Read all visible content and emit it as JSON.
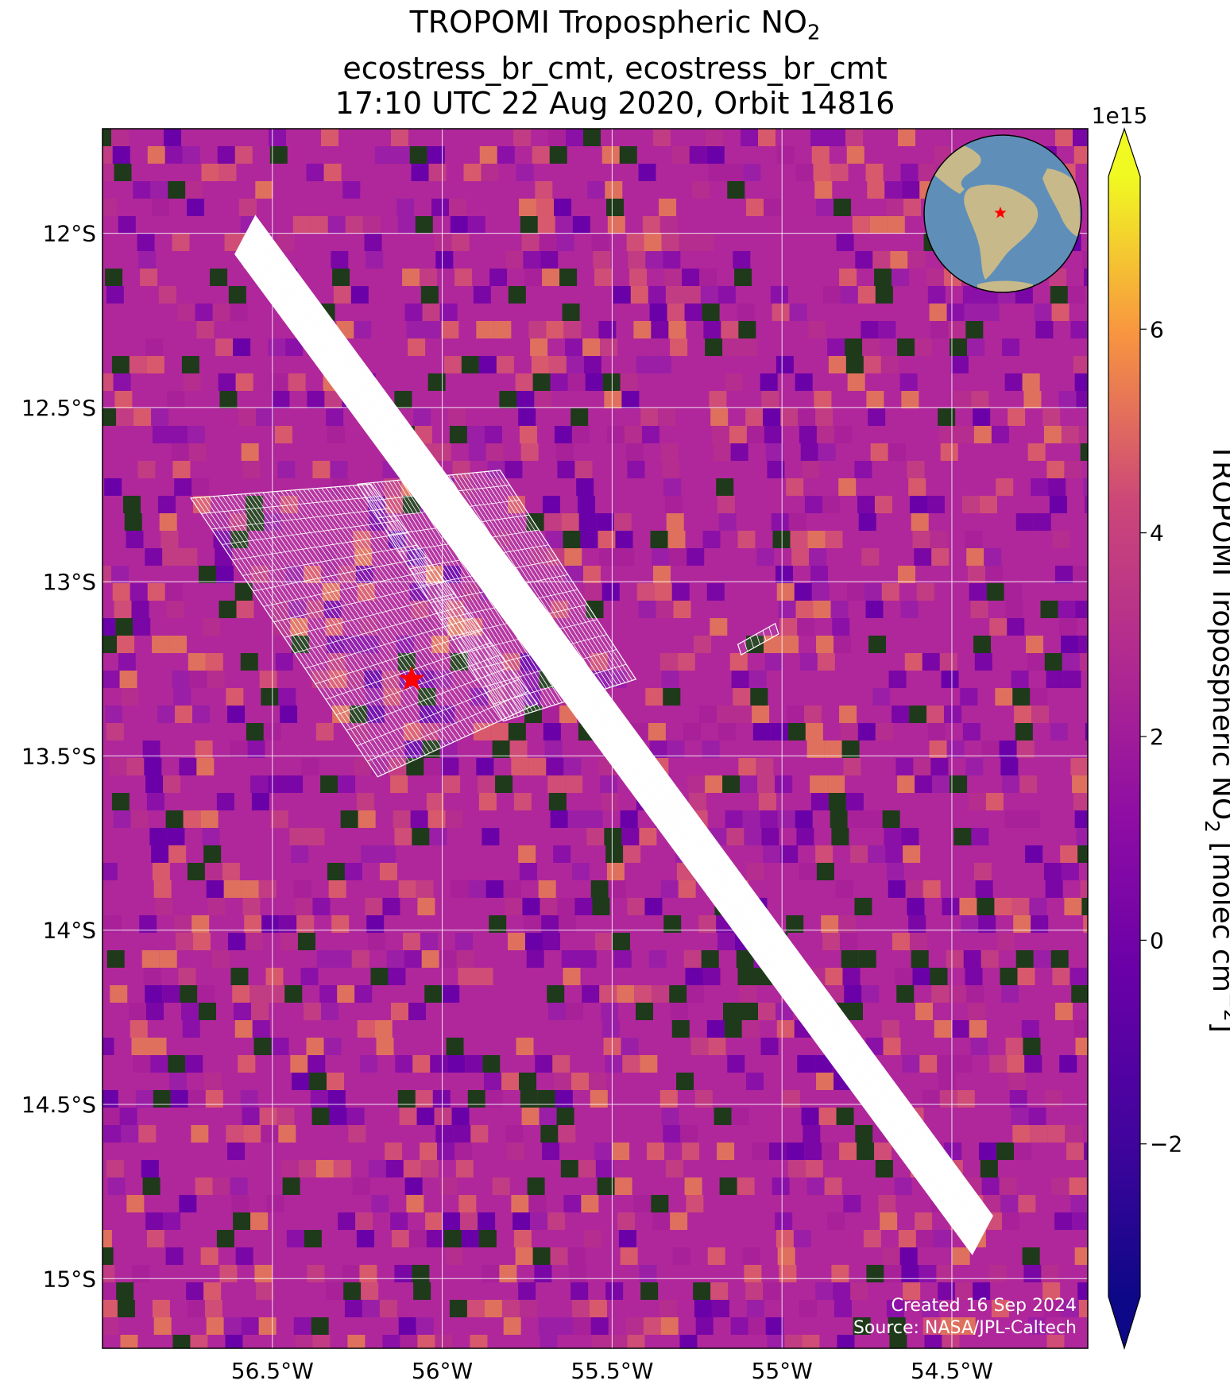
{
  "title": {
    "line1_main": "TROPOMI Tropospheric NO",
    "line1_sub": "2",
    "line2": "ecostress_br_cmt, ecostress_br_cmt",
    "line3": "17:10 UTC 22 Aug 2020, Orbit 14816"
  },
  "map": {
    "extent": {
      "lon_min": -57.0,
      "lon_max": -54.1,
      "lat_min": -15.2,
      "lat_max": -11.7
    },
    "background_color": "#b0279b",
    "grid_color": "#ffffff",
    "lon_ticks": [
      {
        "value": -56.5,
        "label": "56.5°W"
      },
      {
        "value": -56.0,
        "label": "56°W"
      },
      {
        "value": -55.5,
        "label": "55.5°W"
      },
      {
        "value": -55.0,
        "label": "55°W"
      },
      {
        "value": -54.5,
        "label": "54.5°W"
      }
    ],
    "lat_ticks": [
      {
        "value": -12.0,
        "label": "12°S"
      },
      {
        "value": -12.5,
        "label": "12.5°S"
      },
      {
        "value": -13.0,
        "label": "13°S"
      },
      {
        "value": -13.5,
        "label": "13.5°S"
      },
      {
        "value": -14.0,
        "label": "14°S"
      },
      {
        "value": -14.5,
        "label": "14.5°S"
      },
      {
        "value": -15.0,
        "label": "15°S"
      }
    ],
    "site_marker": {
      "lon": -56.09,
      "lat": -13.28,
      "color": "#ff0000",
      "icon": "star-icon"
    },
    "swath_outline_color": "#ffffff",
    "credit_line1": "Created 16 Sep 2024",
    "credit_line2": "Source: NASA/JPL-Caltech"
  },
  "inset_globe": {
    "icon": "globe-icon",
    "ocean_color": "#5f8fb8",
    "land_color": "#c8b98a",
    "marker_color": "#ff0000"
  },
  "colorbar": {
    "colormap": "plasma",
    "vmin": -3.5,
    "vmax": 7.5,
    "scale_label": "1e15",
    "ticks": [
      {
        "value": 6,
        "label": "6"
      },
      {
        "value": 4,
        "label": "4"
      },
      {
        "value": 2,
        "label": "2"
      },
      {
        "value": 0,
        "label": "0"
      },
      {
        "value": -2,
        "label": "−2"
      }
    ],
    "label_main": "TROPOMI Tropospheric NO",
    "label_sub": "2",
    "label_units": " [molec cm",
    "label_exp": "−2",
    "label_end": "]",
    "extend": "both"
  }
}
